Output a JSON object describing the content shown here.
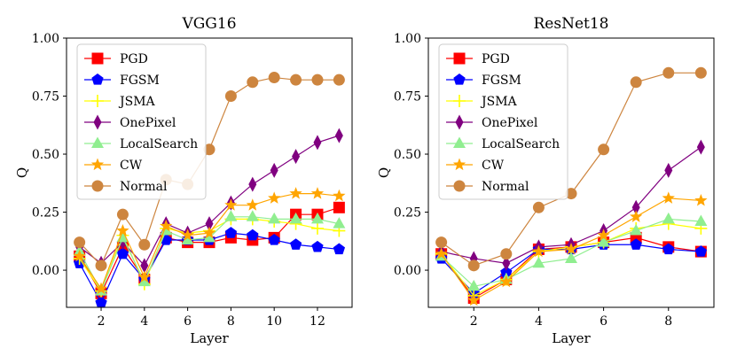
{
  "chart_data": [
    {
      "type": "line",
      "title": "VGG16",
      "xlabel": "Layer",
      "ylabel": "Q",
      "xlim": [
        0.4,
        13.6
      ],
      "ylim": [
        -0.16,
        1.0
      ],
      "xticks": [
        2,
        4,
        6,
        8,
        10,
        12
      ],
      "yticks": [
        0.0,
        0.25,
        0.5,
        0.75,
        1.0
      ],
      "ytick_labels": [
        "0.00",
        "0.25",
        "0.50",
        "0.75",
        "1.00"
      ],
      "legend_position": "upper-left",
      "x": [
        1,
        2,
        3,
        4,
        5,
        6,
        7,
        8,
        9,
        10,
        11,
        12,
        13
      ],
      "series": [
        {
          "name": "PGD",
          "color": "#ff0000",
          "marker": "square",
          "values": [
            0.06,
            -0.1,
            0.1,
            -0.04,
            0.14,
            0.12,
            0.12,
            0.14,
            0.13,
            0.14,
            0.24,
            0.24,
            0.27
          ]
        },
        {
          "name": "FGSM",
          "color": "#0000ff",
          "marker": "pentagon",
          "values": [
            0.03,
            -0.14,
            0.07,
            -0.04,
            0.13,
            0.13,
            0.13,
            0.16,
            0.15,
            0.13,
            0.11,
            0.1,
            0.09
          ]
        },
        {
          "name": "JSMA",
          "color": "#ffff00",
          "marker": "plus",
          "values": [
            0.05,
            -0.09,
            0.15,
            -0.06,
            0.18,
            0.16,
            0.17,
            0.22,
            0.22,
            0.21,
            0.2,
            0.18,
            0.17
          ]
        },
        {
          "name": "OnePixel",
          "color": "#800080",
          "marker": "thin_diamond",
          "values": [
            0.1,
            0.03,
            0.12,
            0.02,
            0.2,
            0.16,
            0.2,
            0.29,
            0.37,
            0.43,
            0.49,
            0.55,
            0.58
          ]
        },
        {
          "name": "LocalSearch",
          "color": "#90ee90",
          "marker": "triangle",
          "values": [
            0.08,
            -0.09,
            0.14,
            -0.05,
            0.17,
            0.13,
            0.14,
            0.23,
            0.23,
            0.22,
            0.22,
            0.22,
            0.2
          ]
        },
        {
          "name": "CW",
          "color": "#ffa500",
          "marker": "star",
          "values": [
            0.06,
            -0.08,
            0.17,
            -0.03,
            0.19,
            0.15,
            0.16,
            0.28,
            0.28,
            0.31,
            0.33,
            0.33,
            0.32
          ]
        },
        {
          "name": "Normal",
          "color": "#cd853f",
          "marker": "circle",
          "values": [
            0.12,
            0.02,
            0.24,
            0.11,
            0.39,
            0.37,
            0.52,
            0.75,
            0.81,
            0.83,
            0.82,
            0.82,
            0.82
          ]
        }
      ]
    },
    {
      "type": "line",
      "title": "ResNet18",
      "xlabel": "Layer",
      "ylabel": "Q",
      "xlim": [
        0.6,
        9.4
      ],
      "ylim": [
        -0.16,
        1.0
      ],
      "xticks": [
        2,
        4,
        6,
        8
      ],
      "yticks": [
        0.0,
        0.25,
        0.5,
        0.75,
        1.0
      ],
      "ytick_labels": [
        "0.00",
        "0.25",
        "0.50",
        "0.75",
        "1.00"
      ],
      "legend_position": "upper-left",
      "x": [
        1,
        2,
        3,
        4,
        5,
        6,
        7,
        8,
        9
      ],
      "series": [
        {
          "name": "PGD",
          "color": "#ff0000",
          "marker": "square",
          "values": [
            0.07,
            -0.12,
            -0.04,
            0.09,
            0.1,
            0.12,
            0.14,
            0.1,
            0.08
          ]
        },
        {
          "name": "FGSM",
          "color": "#0000ff",
          "marker": "pentagon",
          "values": [
            0.05,
            -0.1,
            -0.01,
            0.09,
            0.09,
            0.11,
            0.11,
            0.09,
            0.08
          ]
        },
        {
          "name": "JSMA",
          "color": "#ffff00",
          "marker": "plus",
          "values": [
            0.07,
            -0.11,
            -0.04,
            0.08,
            0.1,
            0.12,
            0.18,
            0.2,
            0.18
          ]
        },
        {
          "name": "OnePixel",
          "color": "#800080",
          "marker": "thin_diamond",
          "values": [
            0.08,
            0.05,
            0.03,
            0.1,
            0.11,
            0.17,
            0.27,
            0.43,
            0.53
          ]
        },
        {
          "name": "LocalSearch",
          "color": "#90ee90",
          "marker": "triangle",
          "values": [
            0.06,
            -0.07,
            -0.04,
            0.03,
            0.05,
            0.12,
            0.17,
            0.22,
            0.21
          ]
        },
        {
          "name": "CW",
          "color": "#ffa500",
          "marker": "star",
          "values": [
            0.07,
            -0.13,
            -0.05,
            0.08,
            0.09,
            0.15,
            0.23,
            0.31,
            0.3
          ]
        },
        {
          "name": "Normal",
          "color": "#cd853f",
          "marker": "circle",
          "values": [
            0.12,
            0.02,
            0.07,
            0.27,
            0.33,
            0.52,
            0.81,
            0.85,
            0.85
          ]
        }
      ]
    }
  ]
}
